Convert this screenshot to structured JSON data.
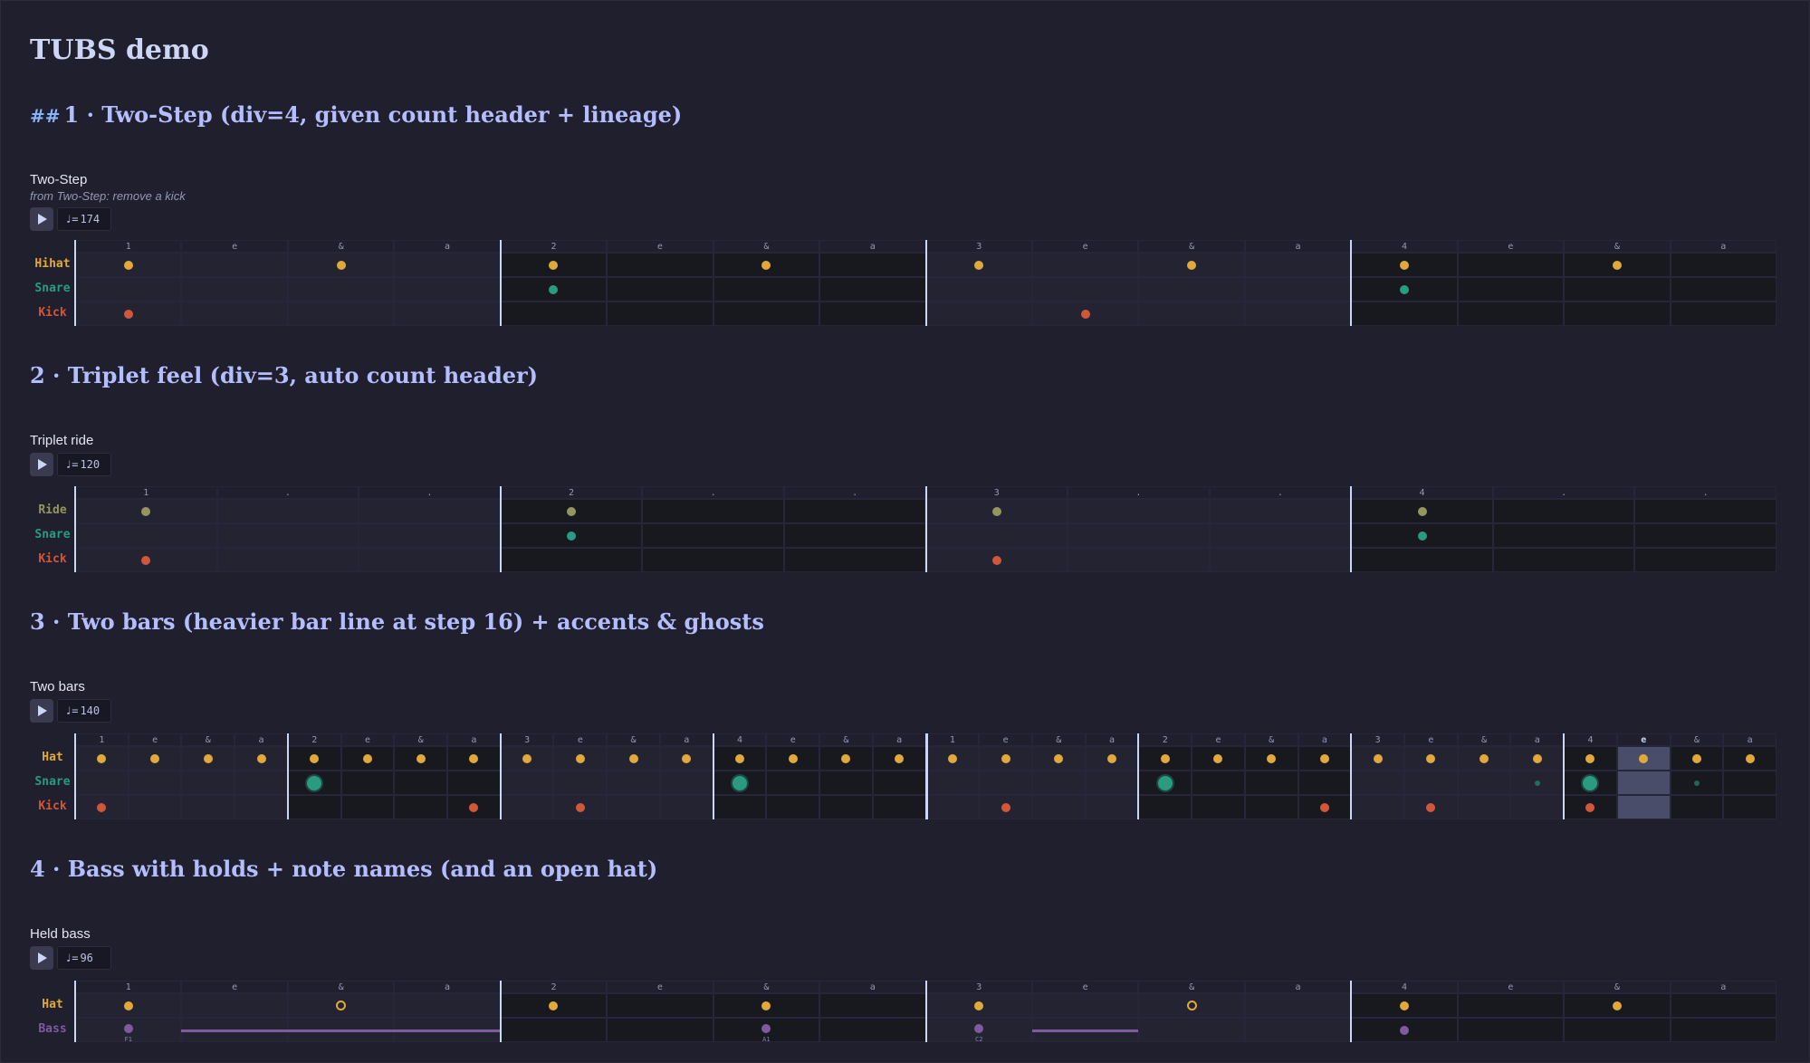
{
  "page_title": "TUBS demo",
  "play_icon": "play-icon",
  "tempo_prefix": "♩=",
  "sections": [
    {
      "heading_hash": "##",
      "heading": "1 · Two-Step (div=4, given count header + lineage)",
      "title": "Two-Step",
      "lineage": "from Two-Step: remove a kick",
      "tempo": "174",
      "steps": 16,
      "div": 4,
      "highlight_step": -1,
      "count": [
        "1",
        "e",
        "&",
        "a",
        "2",
        "e",
        "&",
        "a",
        "3",
        "e",
        "&",
        "a",
        "4",
        "e",
        "&",
        "a"
      ],
      "lanes": [
        {
          "name": "Hihat",
          "color": "#e0a93a",
          "hits": [
            {
              "s": 0
            },
            {
              "s": 2
            },
            {
              "s": 4
            },
            {
              "s": 6
            },
            {
              "s": 8
            },
            {
              "s": 10
            },
            {
              "s": 12
            },
            {
              "s": 14
            }
          ]
        },
        {
          "name": "Snare",
          "color": "#2a9a80",
          "hits": [
            {
              "s": 4
            },
            {
              "s": 12
            }
          ]
        },
        {
          "name": "Kick",
          "color": "#d0573a",
          "hits": [
            {
              "s": 0
            },
            {
              "s": 9
            }
          ]
        }
      ],
      "holds": []
    },
    {
      "heading": "2 · Triplet feel (div=3, auto count header)",
      "title": "Triplet ride",
      "tempo": "120",
      "steps": 12,
      "div": 3,
      "highlight_step": -1,
      "count": [
        "1",
        ".",
        ".",
        "2",
        ".",
        ".",
        "3",
        ".",
        ".",
        "4",
        ".",
        "."
      ],
      "lanes": [
        {
          "name": "Ride",
          "color": "#949660",
          "hits": [
            {
              "s": 0
            },
            {
              "s": 3
            },
            {
              "s": 6
            },
            {
              "s": 9
            }
          ]
        },
        {
          "name": "Snare",
          "color": "#2a9a80",
          "hits": [
            {
              "s": 3
            },
            {
              "s": 9
            }
          ]
        },
        {
          "name": "Kick",
          "color": "#d0573a",
          "hits": [
            {
              "s": 0
            },
            {
              "s": 6
            }
          ]
        }
      ],
      "holds": []
    },
    {
      "heading": "3 · Two bars (heavier bar line at step 16) + accents & ghosts",
      "title": "Two bars",
      "tempo": "140",
      "steps": 32,
      "div": 4,
      "major": 16,
      "highlight_step": 29,
      "count": [
        "1",
        "e",
        "&",
        "a",
        "2",
        "e",
        "&",
        "a",
        "3",
        "e",
        "&",
        "a",
        "4",
        "e",
        "&",
        "a",
        "1",
        "e",
        "&",
        "a",
        "2",
        "e",
        "&",
        "a",
        "3",
        "e",
        "&",
        "a",
        "4",
        "e",
        "&",
        "a"
      ],
      "lanes": [
        {
          "name": "Hat",
          "color": "#e0a93a",
          "hits": [
            {
              "s": 0
            },
            {
              "s": 1
            },
            {
              "s": 2
            },
            {
              "s": 3
            },
            {
              "s": 4
            },
            {
              "s": 5
            },
            {
              "s": 6
            },
            {
              "s": 7
            },
            {
              "s": 8
            },
            {
              "s": 9
            },
            {
              "s": 10
            },
            {
              "s": 11
            },
            {
              "s": 12
            },
            {
              "s": 13
            },
            {
              "s": 14
            },
            {
              "s": 15
            },
            {
              "s": 16
            },
            {
              "s": 17
            },
            {
              "s": 18
            },
            {
              "s": 19
            },
            {
              "s": 20
            },
            {
              "s": 21
            },
            {
              "s": 22
            },
            {
              "s": 23
            },
            {
              "s": 24
            },
            {
              "s": 25
            },
            {
              "s": 26
            },
            {
              "s": 27
            },
            {
              "s": 28
            },
            {
              "s": 29
            },
            {
              "s": 30
            },
            {
              "s": 31
            }
          ]
        },
        {
          "name": "Snare",
          "color": "#2a9a80",
          "hits": [
            {
              "s": 4,
              "t": "accent"
            },
            {
              "s": 12,
              "t": "accent"
            },
            {
              "s": 20,
              "t": "accent"
            },
            {
              "s": 28,
              "t": "accent"
            },
            {
              "s": 27,
              "t": "ghost"
            },
            {
              "s": 30,
              "t": "ghost"
            }
          ]
        },
        {
          "name": "Kick",
          "color": "#d0573a",
          "hits": [
            {
              "s": 0
            },
            {
              "s": 7
            },
            {
              "s": 9
            },
            {
              "s": 17
            },
            {
              "s": 23
            },
            {
              "s": 25
            },
            {
              "s": 28
            }
          ]
        }
      ],
      "holds": []
    },
    {
      "heading": "4 · Bass with holds + note names (and an open hat)",
      "title": "Held bass",
      "tempo": "96",
      "steps": 16,
      "div": 4,
      "highlight_step": -1,
      "count": [
        "1",
        "e",
        "&",
        "a",
        "2",
        "e",
        "&",
        "a",
        "3",
        "e",
        "&",
        "a",
        "4",
        "e",
        "&",
        "a"
      ],
      "lanes": [
        {
          "name": "Hat",
          "color": "#e0a93a",
          "hits": [
            {
              "s": 0
            },
            {
              "s": 2,
              "t": "open"
            },
            {
              "s": 4
            },
            {
              "s": 6
            },
            {
              "s": 8
            },
            {
              "s": 10,
              "t": "open"
            },
            {
              "s": 12
            },
            {
              "s": 14
            }
          ]
        },
        {
          "name": "Bass",
          "color": "#7f5a9e",
          "hits": [
            {
              "s": 0,
              "n": "F1"
            },
            {
              "s": 6,
              "n": "A1"
            },
            {
              "s": 8,
              "n": "C2"
            },
            {
              "s": 12
            }
          ]
        }
      ],
      "holds": [
        {
          "lane": 1,
          "from": 1,
          "to": 4
        },
        {
          "lane": 1,
          "from": 9,
          "to": 10
        }
      ]
    }
  ]
}
